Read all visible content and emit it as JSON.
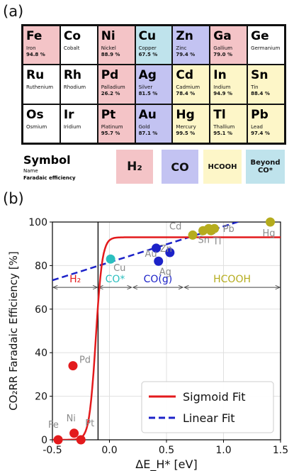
{
  "panel_a": {
    "label": "(a)",
    "colors": {
      "H2": "#f4c4c7",
      "CO": "#c3c3f2",
      "HCOOH": "#fdf6c8",
      "Beyond CO*": "#bfe3ec",
      "none": "#ffffff"
    },
    "elements": [
      {
        "symbol": "Fe",
        "name": "Iron",
        "fe": "94.8 %",
        "cat": "H2"
      },
      {
        "symbol": "Co",
        "name": "Cobalt",
        "fe": "",
        "cat": "none"
      },
      {
        "symbol": "Ni",
        "name": "Nickel",
        "fe": "88.9 %",
        "cat": "H2"
      },
      {
        "symbol": "Cu",
        "name": "Copper",
        "fe": "67.5 %",
        "cat": "Beyond CO*"
      },
      {
        "symbol": "Zn",
        "name": "Zinc",
        "fe": "79.4 %",
        "cat": "CO"
      },
      {
        "symbol": "Ga",
        "name": "Gallium",
        "fe": "79.0 %",
        "cat": "H2"
      },
      {
        "symbol": "Ge",
        "name": "Germanium",
        "fe": "",
        "cat": "none"
      },
      {
        "symbol": "Ru",
        "name": "Ruthenium",
        "fe": "",
        "cat": "none"
      },
      {
        "symbol": "Rh",
        "name": "Rhodium",
        "fe": "",
        "cat": "none"
      },
      {
        "symbol": "Pd",
        "name": "Palladium",
        "fe": "26.2 %",
        "cat": "H2"
      },
      {
        "symbol": "Ag",
        "name": "Silver",
        "fe": "81.5 %",
        "cat": "CO"
      },
      {
        "symbol": "Cd",
        "name": "Cadmium",
        "fe": "78.4 %",
        "cat": "HCOOH"
      },
      {
        "symbol": "In",
        "name": "Indium",
        "fe": "94.9 %",
        "cat": "HCOOH"
      },
      {
        "symbol": "Sn",
        "name": "Tin",
        "fe": "88.4 %",
        "cat": "HCOOH"
      },
      {
        "symbol": "Os",
        "name": "Osmium",
        "fe": "",
        "cat": "none"
      },
      {
        "symbol": "Ir",
        "name": "Iridium",
        "fe": "",
        "cat": "none"
      },
      {
        "symbol": "Pt",
        "name": "Platinum",
        "fe": "95.7 %",
        "cat": "H2"
      },
      {
        "symbol": "Au",
        "name": "Gold",
        "fe": "87.1 %",
        "cat": "CO"
      },
      {
        "symbol": "Hg",
        "name": "Mercury",
        "fe": "99.5 %",
        "cat": "HCOOH"
      },
      {
        "symbol": "Tl",
        "name": "Thallium",
        "fe": "95.1 %",
        "cat": "HCOOH"
      },
      {
        "symbol": "Pb",
        "name": "Lead",
        "fe": "97.4 %",
        "cat": "HCOOH"
      }
    ],
    "legend": {
      "symbol": "Symbol",
      "name": "Name",
      "fe": "Faradaic efficiency",
      "categories": [
        {
          "label": "H₂",
          "cat": "H2"
        },
        {
          "label": "CO",
          "cat": "CO"
        },
        {
          "label": "HCOOH",
          "cat": "HCOOH"
        },
        {
          "label": "Beyond CO*",
          "cat": "Beyond CO*"
        }
      ]
    }
  },
  "panel_b": {
    "label": "(b)"
  },
  "chart_data": {
    "type": "scatter",
    "xlabel": "ΔE_H* [eV]",
    "ylabel": "CO₂RR Faradaic Efficiency [%]",
    "xlim": [
      -0.5,
      1.5
    ],
    "ylim": [
      0,
      100
    ],
    "xticks": [
      -0.5,
      0.0,
      0.5,
      1.0,
      1.5
    ],
    "yticks": [
      0,
      20,
      40,
      60,
      80,
      100
    ],
    "grid": true,
    "vline_x": -0.1,
    "points": [
      {
        "label": "Fe",
        "x": -0.45,
        "y": 0,
        "color": "#e31a1c"
      },
      {
        "label": "Ni",
        "x": -0.31,
        "y": 3,
        "color": "#e31a1c"
      },
      {
        "label": "Pt",
        "x": -0.25,
        "y": 0,
        "color": "#e31a1c"
      },
      {
        "label": "Pd",
        "x": -0.32,
        "y": 34,
        "color": "#e31a1c"
      },
      {
        "label": "Cu",
        "x": 0.01,
        "y": 83,
        "color": "#2bbfbf"
      },
      {
        "label": "Au",
        "x": 0.41,
        "y": 88,
        "color": "#1c22c8"
      },
      {
        "label": "Ag",
        "x": 0.43,
        "y": 82,
        "color": "#1c22c8"
      },
      {
        "label": "Zn",
        "x": 0.53,
        "y": 86,
        "color": "#1c22c8"
      },
      {
        "label": "Cd",
        "x": 0.73,
        "y": 94,
        "color": "#b5ac1d"
      },
      {
        "label": "Sn",
        "x": 0.82,
        "y": 96,
        "color": "#b5ac1d"
      },
      {
        "label": "In",
        "x": 0.87,
        "y": 97,
        "color": "#b5ac1d"
      },
      {
        "label": "Tl",
        "x": 0.89,
        "y": 96,
        "color": "#b5ac1d"
      },
      {
        "label": "Pb",
        "x": 0.92,
        "y": 97,
        "color": "#b5ac1d"
      },
      {
        "label": "Hg",
        "x": 1.41,
        "y": 100,
        "color": "#b5ac1d"
      }
    ],
    "regions": [
      {
        "label": "H₂",
        "x_from": -0.5,
        "x_to": -0.1,
        "color": "#e31a1c"
      },
      {
        "label": "CO*",
        "x_from": -0.1,
        "x_to": 0.2,
        "color": "#2bbfbf"
      },
      {
        "label": "CO(g)",
        "x_from": 0.2,
        "x_to": 0.65,
        "color": "#1c22c8"
      },
      {
        "label": "HCOOH",
        "x_from": 0.65,
        "x_to": 1.5,
        "color": "#b5ac1d"
      }
    ],
    "region_y": 70,
    "sigmoid_fit": {
      "name": "Sigmoid Fit",
      "L": 93,
      "x0": -0.12,
      "k": 35,
      "color": "#e31a1c"
    },
    "linear_fit": {
      "name": "Linear Fit",
      "intercept": 81.5,
      "slope": 16.5,
      "color": "#1c22c8"
    },
    "legend_position": "lower-right"
  }
}
